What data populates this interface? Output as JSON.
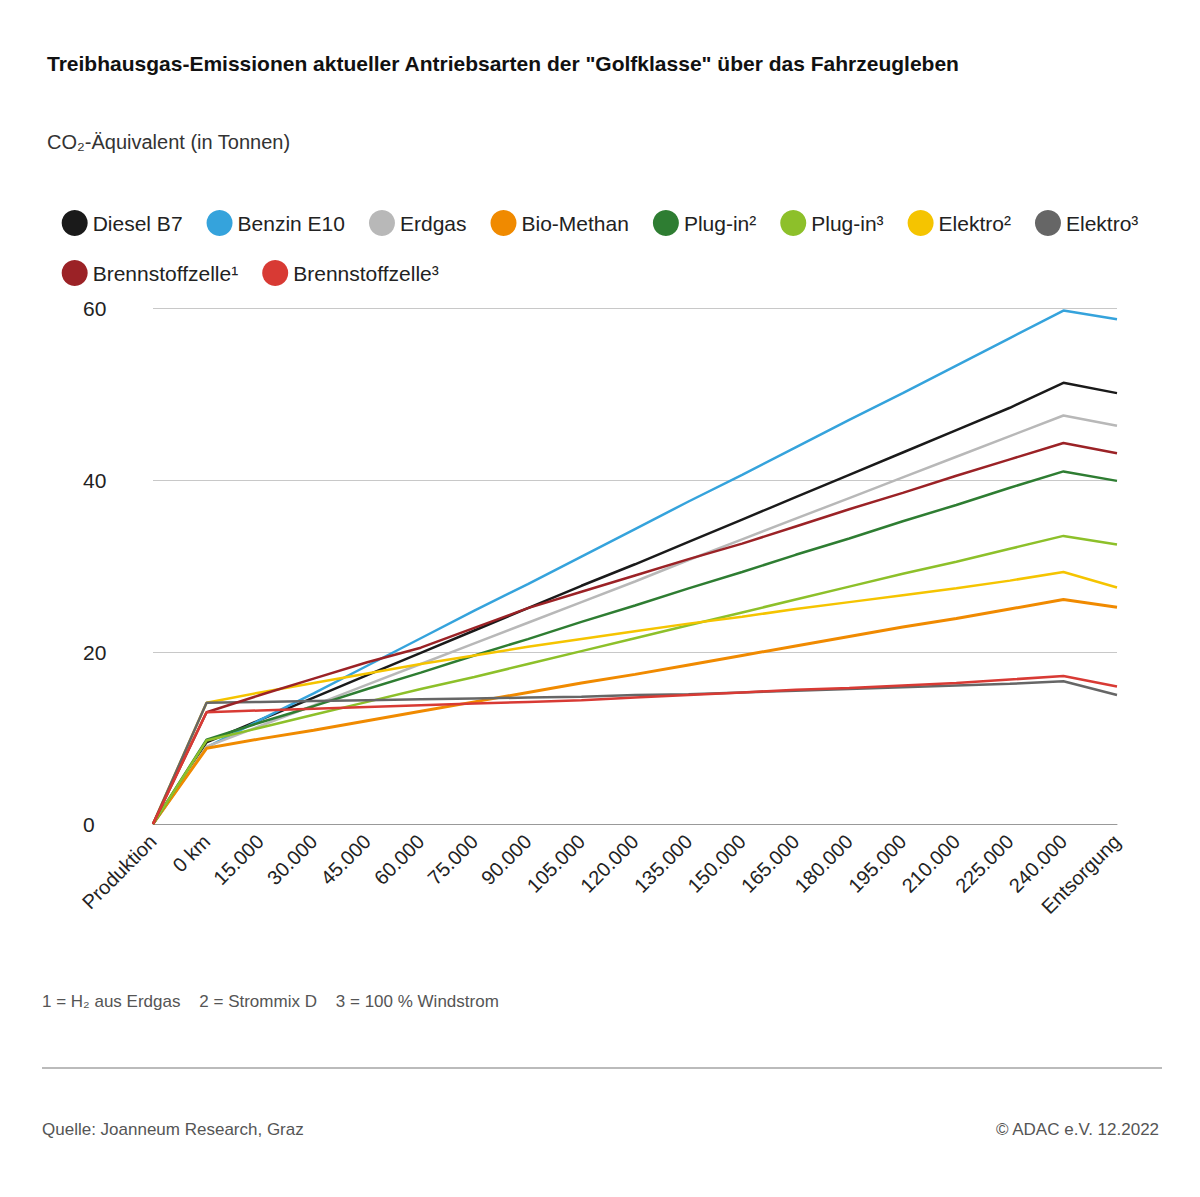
{
  "chart_data": {
    "type": "line",
    "title": "Treibhausgas-Emissionen aktueller Antriebsarten der \"Golfklasse\" über das Fahrzeugleben",
    "subtitle": "CO₂-Äquivalent (in Tonnen)",
    "annotations": [
      "1 = H₂ aus Erdgas    2 = Strommix D    3 = 100 % Windstrom",
      "Quelle: Joanneum Research, Graz",
      "© ADAC e.V. 12.2022"
    ],
    "categories": [
      "Produktion",
      "0 km",
      "15.000",
      "30.000",
      "45.000",
      "60.000",
      "75.000",
      "90.000",
      "105.000",
      "120.000",
      "135.000",
      "150.000",
      "165.000",
      "180.000",
      "195.000",
      "210.000",
      "225.000",
      "240.000",
      "Entsorgung"
    ],
    "series": [
      {
        "name": "Diesel B7",
        "color": "#1a1a1a",
        "values": [
          0,
          9.5,
          12.1,
          14.7,
          17.3,
          19.9,
          22.5,
          25.1,
          27.7,
          30.2,
          32.8,
          35.4,
          38.0,
          40.6,
          43.2,
          45.8,
          48.4,
          51.3,
          50.1
        ]
      },
      {
        "name": "Benzin E10",
        "color": "#35a3dc",
        "values": [
          0,
          8.9,
          12.1,
          15.2,
          18.4,
          21.6,
          24.8,
          27.9,
          31.1,
          34.3,
          37.5,
          40.6,
          43.8,
          47.0,
          50.1,
          53.3,
          56.5,
          59.7,
          58.7
        ]
      },
      {
        "name": "Erdgas",
        "color": "#b8b8b8",
        "values": [
          0,
          9.0,
          11.4,
          13.8,
          16.2,
          18.6,
          21.0,
          23.4,
          25.8,
          28.2,
          30.7,
          33.1,
          35.5,
          37.9,
          40.3,
          42.7,
          45.1,
          47.5,
          46.3
        ]
      },
      {
        "name": "Bio-Methan",
        "color": "#f08a00",
        "values": [
          0,
          8.8,
          9.9,
          10.9,
          12.0,
          13.1,
          14.2,
          15.3,
          16.4,
          17.4,
          18.5,
          19.6,
          20.7,
          21.8,
          22.9,
          23.9,
          25.0,
          26.1,
          25.2
        ]
      },
      {
        "name": "Plug-in²",
        "color": "#2e7d32",
        "values": [
          0,
          9.8,
          11.8,
          13.7,
          15.7,
          17.6,
          19.6,
          21.5,
          23.5,
          25.4,
          27.4,
          29.3,
          31.3,
          33.2,
          35.2,
          37.1,
          39.1,
          41.0,
          39.9
        ]
      },
      {
        "name": "Plug-in³",
        "color": "#8dc02a",
        "values": [
          0,
          9.7,
          11.2,
          12.7,
          14.2,
          15.7,
          17.1,
          18.6,
          20.1,
          21.6,
          23.1,
          24.6,
          26.1,
          27.6,
          29.1,
          30.5,
          32.0,
          33.5,
          32.5
        ]
      },
      {
        "name": "Elektro²",
        "color": "#f5c400",
        "values": [
          0,
          14.1,
          15.3,
          16.4,
          17.5,
          18.6,
          19.6,
          20.6,
          21.5,
          22.4,
          23.3,
          24.1,
          25.0,
          25.8,
          26.6,
          27.4,
          28.3,
          29.3,
          27.5
        ]
      },
      {
        "name": "Elektro³",
        "color": "#666666",
        "values": [
          0,
          14.1,
          14.2,
          14.3,
          14.4,
          14.5,
          14.6,
          14.7,
          14.8,
          15.0,
          15.1,
          15.3,
          15.5,
          15.7,
          15.9,
          16.1,
          16.3,
          16.6,
          15.0
        ]
      },
      {
        "name": "Brennstoffzelle¹",
        "color": "#9b2226",
        "values": [
          0,
          13.0,
          15.0,
          16.9,
          18.8,
          20.5,
          22.8,
          25.1,
          27.0,
          28.9,
          30.8,
          32.6,
          34.6,
          36.6,
          38.5,
          40.5,
          42.4,
          44.3,
          43.1
        ]
      },
      {
        "name": "Brennstoffzelle³",
        "color": "#d83a34",
        "values": [
          0,
          13.0,
          13.2,
          13.4,
          13.6,
          13.8,
          14.0,
          14.2,
          14.4,
          14.7,
          15.0,
          15.3,
          15.6,
          15.8,
          16.1,
          16.4,
          16.8,
          17.2,
          16.0
        ]
      }
    ],
    "ylim": [
      0,
      60
    ],
    "yticks": [
      0,
      20,
      40,
      60
    ],
    "grid": true,
    "legend": "top"
  }
}
